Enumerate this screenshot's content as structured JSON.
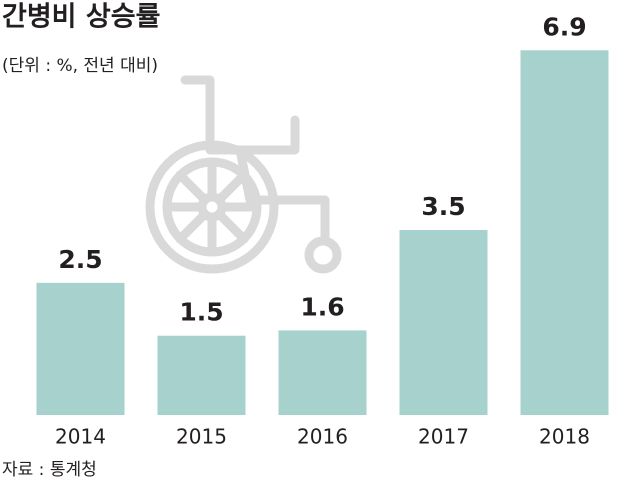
{
  "chart_data": {
    "type": "bar",
    "title": "간병비 상승률",
    "subtitle": "(단위 : %, 전년 대비)",
    "source": "자료 : 통계청",
    "categories": [
      "2014",
      "2015",
      "2016",
      "2017",
      "2018"
    ],
    "values": [
      2.5,
      1.5,
      1.6,
      3.5,
      6.9
    ],
    "color": "#a6d1cc",
    "ylim": [
      0,
      7
    ]
  }
}
